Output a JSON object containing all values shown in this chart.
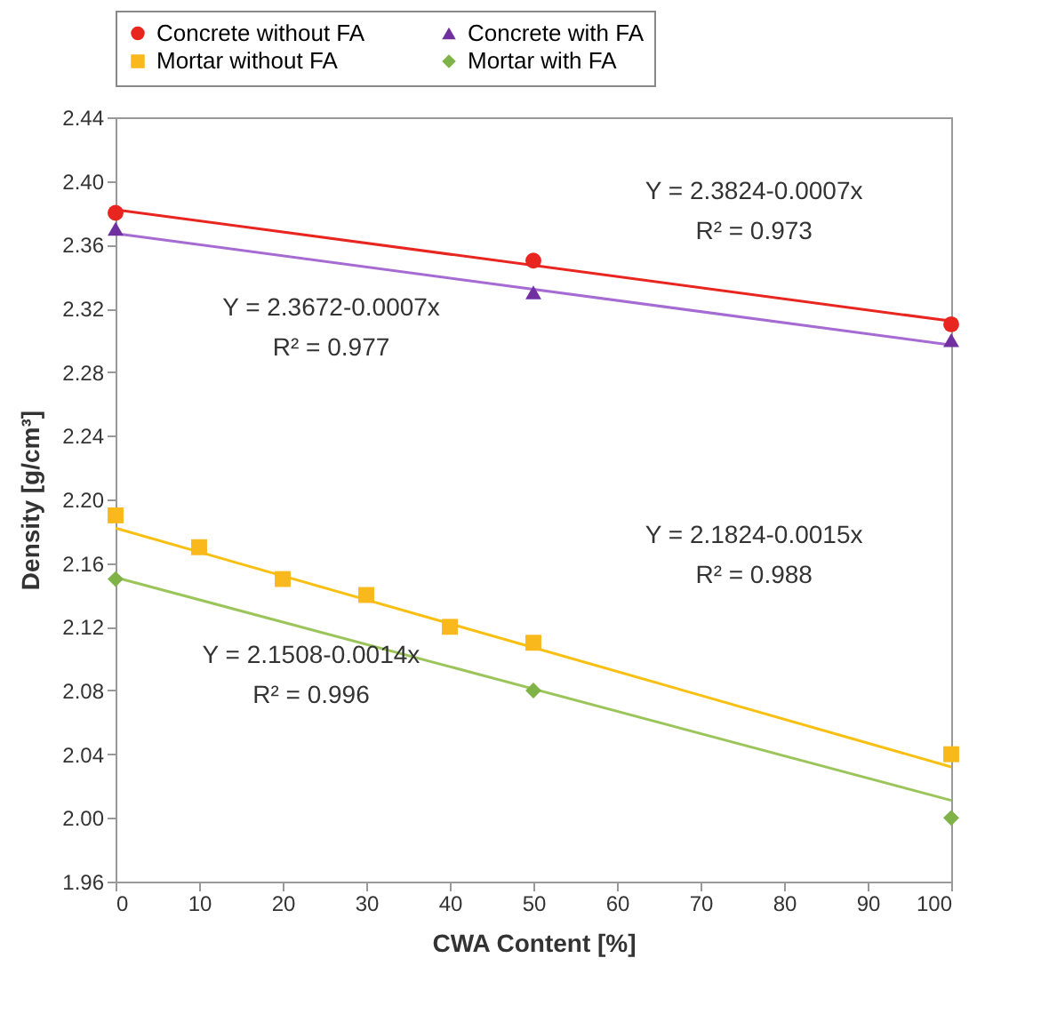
{
  "chart_data": {
    "type": "scatter",
    "xlabel": "CWA Content [%]",
    "ylabel": "Density [g/cm³]",
    "xlim": [
      0,
      100
    ],
    "xticks": [
      0,
      10,
      20,
      30,
      40,
      50,
      60,
      70,
      80,
      90,
      100
    ],
    "ylim": [
      1.96,
      2.44
    ],
    "yticks": [
      1.96,
      {
        "value": 2.0,
        "label": "2.00"
      },
      2.04,
      2.08,
      2.12,
      2.16,
      {
        "value": 2.2,
        "label": "2.20"
      },
      2.24,
      2.28,
      2.32,
      2.36,
      {
        "value": 2.4,
        "label": "2.40"
      },
      2.44
    ],
    "grid": false,
    "legend": "top",
    "series": [
      {
        "name": "Concrete without FA",
        "color": "#e8251f",
        "marker": "circle",
        "x": [
          0,
          50,
          100
        ],
        "values": [
          2.38,
          2.35,
          2.31
        ]
      },
      {
        "name": "Concrete with FA",
        "color": "#7030a0",
        "marker": "triangle",
        "x": [
          0,
          50,
          100
        ],
        "values": [
          2.37,
          2.33,
          2.3
        ]
      },
      {
        "name": "Mortar without FA",
        "color": "#f9b81b",
        "marker": "square",
        "x": [
          0,
          10,
          20,
          30,
          40,
          50,
          100
        ],
        "values": [
          2.19,
          2.17,
          2.15,
          2.14,
          2.12,
          2.11,
          2.04
        ]
      },
      {
        "name": "Mortar with FA",
        "color": "#7fb347",
        "marker": "diamond",
        "x": [
          0,
          50,
          100
        ],
        "values": [
          2.15,
          2.08,
          2.0
        ]
      },
      {
        "type": "line",
        "color": "#e8251f",
        "x": [
          0,
          100
        ],
        "values": [
          2.382,
          2.312
        ]
      },
      {
        "type": "line",
        "color": "#a66bd3",
        "x": [
          0,
          100
        ],
        "values": [
          2.367,
          2.297
        ]
      },
      {
        "type": "line",
        "color": "#f9c013",
        "x": [
          0,
          100
        ],
        "values": [
          2.182,
          2.032
        ]
      },
      {
        "type": "line",
        "color": "#9bc55a",
        "x": [
          0,
          100
        ],
        "values": [
          2.151,
          2.011
        ]
      }
    ],
    "annotations": [
      "Y = 2.3824-0.0007x",
      "R² = 0.973",
      "Y = 2.3672-0.0007x",
      "R² = 0.977",
      "Y = 2.1824-0.0015x",
      "R² = 0.988",
      "Y = 2.1508-0.0014x",
      "R² = 0.996"
    ]
  }
}
